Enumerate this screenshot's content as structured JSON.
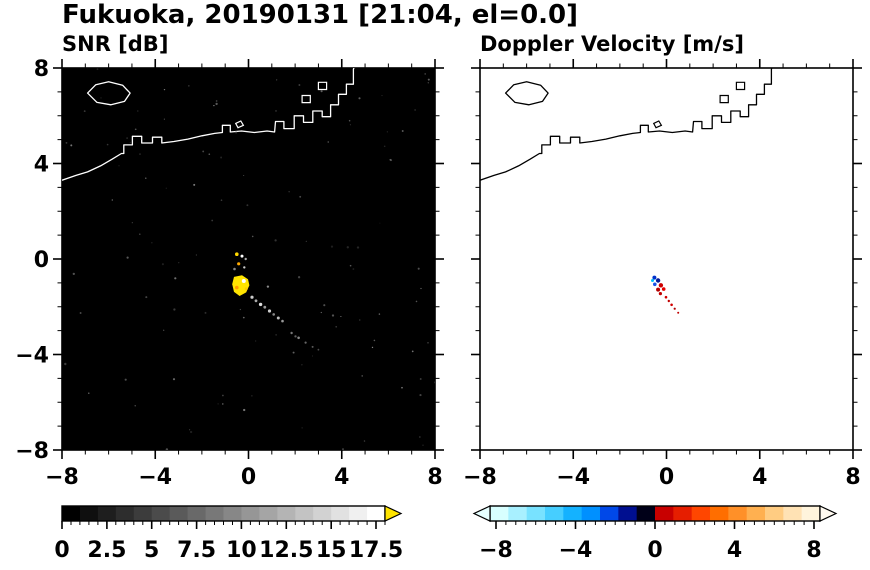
{
  "page_title": "Fukuoka, 20190131 [21:04, el=0.0]",
  "chart_data": {
    "type": "heatmap",
    "description": "Dual-panel Doppler radar PPI display over Fukuoka bay; left panel SNR in dB on black background, right panel Doppler velocity in m/s on white background; axes are distance from radar in km, range -8 to 8 on both axes; coastline overlaid on both panels; small echo cluster near (-0.4,-1.1) with streak extending toward (3,-3.8).",
    "axis": {
      "xmin": -8,
      "xmax": 8,
      "ymin": -8,
      "ymax": 8,
      "major_tick": 4,
      "minor_tick": 1,
      "xtick_labels": [
        "−8",
        "−4",
        "0",
        "4",
        "8"
      ],
      "ytick_labels": [
        "8",
        "4",
        "0",
        "−4",
        "−8"
      ]
    },
    "panels": [
      {
        "id": "snr",
        "title": "SNR [dB]",
        "bg": "#000000",
        "coast_color": "#ffffff",
        "show_ylabels": true
      },
      {
        "id": "vel",
        "title": "Doppler Velocity [m/s]",
        "bg": "#ffffff",
        "coast_color": "#000000",
        "show_ylabels": false
      }
    ],
    "coastline": {
      "main": [
        [
          -8,
          3.3
        ],
        [
          -7.4,
          3.5
        ],
        [
          -6.9,
          3.65
        ],
        [
          -6.35,
          3.9
        ],
        [
          -5.85,
          4.18
        ],
        [
          -5.45,
          4.42
        ],
        [
          -5.35,
          4.42
        ],
        [
          -5.35,
          4.78
        ],
        [
          -4.98,
          4.78
        ],
        [
          -4.98,
          5.14
        ],
        [
          -4.58,
          5.14
        ],
        [
          -4.58,
          4.86
        ],
        [
          -4.12,
          4.86
        ],
        [
          -4.12,
          5.1
        ],
        [
          -3.72,
          5.1
        ],
        [
          -3.72,
          4.86
        ],
        [
          -3.2,
          4.92
        ],
        [
          -2.6,
          5.02
        ],
        [
          -2.0,
          5.16
        ],
        [
          -1.45,
          5.26
        ],
        [
          -1.12,
          5.3
        ],
        [
          -1.12,
          5.6
        ],
        [
          -0.78,
          5.6
        ],
        [
          -0.78,
          5.32
        ],
        [
          -0.3,
          5.36
        ],
        [
          0.25,
          5.3
        ],
        [
          0.8,
          5.36
        ],
        [
          1.12,
          5.32
        ],
        [
          1.16,
          5.76
        ],
        [
          1.52,
          5.76
        ],
        [
          1.52,
          5.46
        ],
        [
          1.96,
          5.46
        ],
        [
          1.96,
          6.0
        ],
        [
          2.36,
          6.0
        ],
        [
          2.36,
          5.72
        ],
        [
          2.76,
          5.72
        ],
        [
          2.76,
          6.2
        ],
        [
          3.16,
          6.2
        ],
        [
          3.16,
          5.96
        ],
        [
          3.52,
          5.96
        ],
        [
          3.52,
          6.46
        ],
        [
          3.86,
          6.46
        ],
        [
          3.86,
          6.9
        ],
        [
          4.2,
          6.9
        ],
        [
          4.2,
          7.32
        ],
        [
          4.5,
          7.32
        ],
        [
          4.5,
          7.95
        ],
        [
          4.58,
          8.15
        ]
      ],
      "island": [
        [
          -6.9,
          6.95
        ],
        [
          -6.55,
          7.3
        ],
        [
          -6.0,
          7.42
        ],
        [
          -5.4,
          7.28
        ],
        [
          -5.08,
          6.95
        ],
        [
          -5.32,
          6.6
        ],
        [
          -5.9,
          6.46
        ],
        [
          -6.5,
          6.56
        ]
      ],
      "islets": [
        [
          [
            -0.55,
            5.68
          ],
          [
            -0.33,
            5.78
          ],
          [
            -0.22,
            5.6
          ],
          [
            -0.45,
            5.5
          ]
        ],
        [
          [
            2.3,
            6.55
          ],
          [
            2.65,
            6.55
          ],
          [
            2.65,
            6.85
          ],
          [
            2.3,
            6.85
          ]
        ],
        [
          [
            3.0,
            7.1
          ],
          [
            3.35,
            7.1
          ],
          [
            3.35,
            7.4
          ],
          [
            3.0,
            7.4
          ]
        ]
      ]
    },
    "echoes": {
      "snr": {
        "blob": {
          "color": "#ffe400",
          "points": [
            [
              -0.62,
              -0.75
            ],
            [
              -0.28,
              -0.68
            ],
            [
              -0.02,
              -0.85
            ],
            [
              0.04,
              -1.1
            ],
            [
              -0.1,
              -1.4
            ],
            [
              -0.38,
              -1.55
            ],
            [
              -0.62,
              -1.38
            ],
            [
              -0.7,
              -1.05
            ]
          ]
        },
        "dots": [
          {
            "x": -0.5,
            "y": 0.2,
            "r": 1.8,
            "c": "#ffd700"
          },
          {
            "x": -0.28,
            "y": 0.12,
            "r": 1.5,
            "c": "#ffffff"
          },
          {
            "x": -0.12,
            "y": 0.0,
            "r": 1.2,
            "c": "#aaaaaa"
          },
          {
            "x": -0.42,
            "y": -0.2,
            "r": 1.6,
            "c": "#ffaa00"
          },
          {
            "x": -0.6,
            "y": -0.42,
            "r": 1.3,
            "c": "#888888"
          },
          {
            "x": -0.18,
            "y": -0.35,
            "r": 1.2,
            "c": "#cccccc"
          },
          {
            "x": -0.2,
            "y": -0.92,
            "r": 2.0,
            "c": "#ffffff"
          },
          {
            "x": -0.5,
            "y": -1.2,
            "r": 1.8,
            "c": "#ff9900"
          },
          {
            "x": -0.1,
            "y": -1.25,
            "r": 1.5,
            "c": "#ffcc00"
          },
          {
            "x": 0.15,
            "y": -1.6,
            "r": 1.6,
            "c": "#cccccc"
          },
          {
            "x": 0.32,
            "y": -1.75,
            "r": 1.4,
            "c": "#aaaaaa"
          },
          {
            "x": 0.52,
            "y": -1.9,
            "r": 1.7,
            "c": "#dddddd"
          },
          {
            "x": 0.7,
            "y": -2.02,
            "r": 1.4,
            "c": "#999999"
          },
          {
            "x": 0.9,
            "y": -2.18,
            "r": 1.6,
            "c": "#cccccc"
          },
          {
            "x": 1.08,
            "y": -2.32,
            "r": 1.3,
            "c": "#888888"
          },
          {
            "x": 1.28,
            "y": -2.47,
            "r": 1.5,
            "c": "#bbbbbb"
          },
          {
            "x": 1.46,
            "y": -2.6,
            "r": 1.3,
            "c": "#999999"
          },
          {
            "x": 1.85,
            "y": -3.1,
            "r": 1.2,
            "c": "#777777"
          },
          {
            "x": 2.15,
            "y": -3.3,
            "r": 1.3,
            "c": "#888888"
          },
          {
            "x": 2.45,
            "y": -3.5,
            "r": 1.1,
            "c": "#666666"
          },
          {
            "x": 2.75,
            "y": -3.68,
            "r": 1.0,
            "c": "#5a5a5a"
          },
          {
            "x": 3.0,
            "y": -3.8,
            "r": 0.9,
            "c": "#4a4a4a"
          }
        ],
        "noise": {
          "count": 120,
          "seed": 13,
          "colors": [
            "#5a5a5a",
            "#7a7a7a",
            "#9a9a9a",
            "#b5b5b5"
          ]
        }
      },
      "vel": {
        "dots": [
          {
            "x": -0.52,
            "y": -0.78,
            "r": 2.0,
            "c": "#0033cc"
          },
          {
            "x": -0.36,
            "y": -0.9,
            "r": 2.2,
            "c": "#001a99"
          },
          {
            "x": -0.5,
            "y": -1.06,
            "r": 1.8,
            "c": "#1a53e6"
          },
          {
            "x": -0.6,
            "y": -0.9,
            "r": 1.5,
            "c": "#00bfff"
          },
          {
            "x": -0.24,
            "y": -1.1,
            "r": 2.2,
            "c": "#cc0000"
          },
          {
            "x": -0.36,
            "y": -1.28,
            "r": 2.0,
            "c": "#b30000"
          },
          {
            "x": -0.12,
            "y": -1.26,
            "r": 1.8,
            "c": "#e60000"
          },
          {
            "x": -0.26,
            "y": -1.45,
            "r": 1.6,
            "c": "#c00000"
          },
          {
            "x": -0.02,
            "y": -1.6,
            "r": 1.3,
            "c": "#d00000"
          },
          {
            "x": 0.1,
            "y": -1.76,
            "r": 1.2,
            "c": "#c00000"
          },
          {
            "x": 0.22,
            "y": -1.92,
            "r": 1.3,
            "c": "#d00000"
          },
          {
            "x": 0.35,
            "y": -2.08,
            "r": 1.1,
            "c": "#b00000"
          },
          {
            "x": 0.5,
            "y": -2.25,
            "r": 1.0,
            "c": "#c00000"
          }
        ]
      }
    },
    "colorbars": [
      {
        "panel": "snr",
        "min": 0,
        "max": 18,
        "minor_step": 0.5,
        "tick_values": [
          0,
          2.5,
          5,
          7.5,
          10,
          12.5,
          15,
          17.5
        ],
        "tick_labels": [
          "0",
          "2.5",
          "5",
          "7.5",
          "10",
          "12.5",
          "15",
          "17.5"
        ],
        "colors": [
          "#000000",
          "#0f0f0f",
          "#1e1e1e",
          "#2d2d2d",
          "#3c3c3c",
          "#4b4b4b",
          "#5a5a5a",
          "#696969",
          "#787878",
          "#878787",
          "#969696",
          "#a5a5a5",
          "#b4b4b4",
          "#c3c3c3",
          "#d2d2d2",
          "#e1e1e1",
          "#f0f0f0",
          "#ffffff"
        ],
        "left_arrow": null,
        "right_arrow": "#ffe400"
      },
      {
        "panel": "vel",
        "min": -8.3,
        "max": 8.3,
        "minor_step": 0.5,
        "tick_values": [
          -8,
          -4,
          0,
          4,
          8
        ],
        "tick_labels": [
          "−8",
          "−4",
          "0",
          "4",
          "8"
        ],
        "colors": [
          "#d8ffff",
          "#a8f0ff",
          "#78e2ff",
          "#46ceff",
          "#14b2ff",
          "#0090ff",
          "#0048e8",
          "#000f90",
          "#000018",
          "#c80000",
          "#e61e00",
          "#ff4600",
          "#ff6e00",
          "#ff9028",
          "#ffb050",
          "#ffcc82",
          "#ffe2b4",
          "#fff4dc"
        ],
        "left_arrow": "#e6ffff",
        "right_arrow": "#fffaf0"
      }
    ]
  }
}
